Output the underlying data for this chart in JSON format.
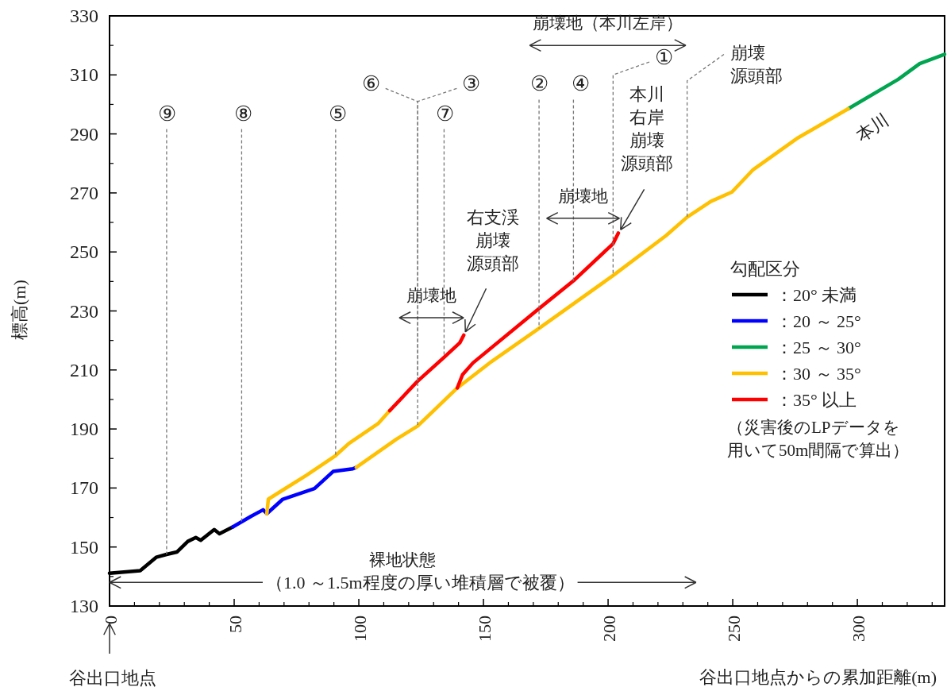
{
  "chart_data": {
    "type": "line",
    "xlabel": "谷出口地点からの累加距離(m)",
    "ylabel": "標高(m)",
    "legend_title": "勾配区分",
    "legend": "right",
    "xlim": [
      0,
      335
    ],
    "ylim": [
      130,
      330
    ],
    "xticks": [
      0,
      50,
      100,
      150,
      200,
      250,
      300
    ],
    "yticks": [
      130,
      150,
      170,
      190,
      210,
      230,
      250,
      270,
      290,
      310,
      330
    ],
    "series": [
      {
        "name": "：20°  未満",
        "color": "#000000",
        "x": [
          0,
          12.3,
          18.7,
          22.9,
          27,
          31.4,
          34.6,
          36.6,
          42,
          44.1,
          49.4
        ],
        "values": [
          141.1,
          142,
          146.5,
          147.5,
          148.3,
          151.9,
          153.2,
          152.3,
          155.9,
          154.5,
          156.8
        ]
      },
      {
        "name": "：20 ～ 25°",
        "color": "#0000ff",
        "x": [
          49.4,
          56.8,
          61.6,
          63.1,
          69.5,
          82.2,
          89.7,
          97.6,
          99
        ],
        "values": [
          156.8,
          160.4,
          162.6,
          161.3,
          166.2,
          169.8,
          175.6,
          176.5,
          177
        ]
      },
      {
        "name": "：25 ～ 30°",
        "color": "#00a550",
        "x": [
          296.3,
          316.4,
          325,
          335
        ],
        "values": [
          298.5,
          308.5,
          313.8,
          317
        ]
      },
      {
        "name": "：30 ～ 35°",
        "color": "#ffc000",
        "x": [
          63.1,
          63.7,
          69.5,
          79,
          90.7,
          96,
          107.7,
          112.4,
          null,
          99,
          115,
          123.6,
          139.5,
          153.3,
          172.3,
          202,
          223.2,
          231.7,
          241.2,
          249.7,
          258.2,
          276.2,
          296.3
        ],
        "values": [
          161.3,
          166.2,
          169.3,
          174.3,
          181,
          185.1,
          191.8,
          196.2,
          null,
          177,
          186.5,
          191,
          203.9,
          212.9,
          224.1,
          242,
          255.5,
          261.8,
          267.1,
          270.3,
          277.9,
          288.7,
          298.5
        ]
      },
      {
        "name": "：35°  以上",
        "color": "#ff0000",
        "x": [
          112.4,
          123.6,
          134.2,
          140.5,
          142.1,
          null,
          139.5,
          141.6,
          145.8,
          172.3,
          186.1,
          202,
          204.1
        ],
        "values": [
          196.2,
          206.2,
          214.3,
          219.2,
          221.8,
          null,
          203.9,
          208.4,
          212.4,
          230.8,
          240.2,
          252.8,
          256.4
        ]
      }
    ],
    "annotations": [
      {
        "text": "⑨",
        "x": 22.9,
        "y": 147.5
      },
      {
        "text": "⑧",
        "x": 53,
        "y": 158.6
      },
      {
        "text": "⑤",
        "x": 90.7,
        "y": 181
      },
      {
        "text": "⑥",
        "x": 123.6,
        "y": 206.2
      },
      {
        "text": "③",
        "x": 123.6,
        "y": 191
      },
      {
        "text": "⑦",
        "x": 134.2,
        "y": 214.3
      },
      {
        "text": "②",
        "x": 172.3,
        "y": 224.1
      },
      {
        "text": "④",
        "x": 186.1,
        "y": 240.2
      },
      {
        "text": "①",
        "x": 202,
        "y": 242
      },
      {
        "text": "崩壊源頭部",
        "x": 231.7,
        "y": 261.8
      },
      "本川右岸崩壊源頭部",
      {
        "text": "右支渓崩壊源頭部",
        "x": 142.1,
        "y": 221.8
      },
      "本川",
      "谷出口地点",
      "（1.0 ～1.5m程度の厚い堆積層で被覆）",
      "（災害後のLPデータを用いて50m間隔で算出）",
      "崩壊地（本川左岸）",
      "崩壊地",
      "崩壊地",
      "裸地状態"
    ]
  }
}
